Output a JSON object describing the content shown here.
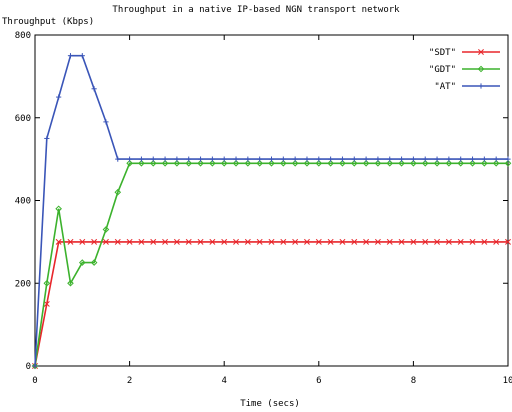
{
  "chart_data": {
    "type": "line",
    "title": "Throughput in a native IP-based NGN transport network",
    "ylabel": "Throughput (Kbps)",
    "xlabel": "Time (secs)",
    "xlim": [
      0,
      10
    ],
    "ylim": [
      0,
      800
    ],
    "x_ticks": [
      0,
      2,
      4,
      6,
      8,
      10
    ],
    "y_ticks": [
      0,
      200,
      400,
      600,
      800
    ],
    "grid": false,
    "legend_position": "top-right",
    "series": [
      {
        "name": "\"SDT\"",
        "color": "#e8262b",
        "marker": "x",
        "x": [
          0,
          0.25,
          0.5,
          0.75,
          1.0,
          1.25,
          1.5,
          1.75,
          2.0,
          2.25,
          2.5,
          2.75,
          3.0,
          3.25,
          3.5,
          3.75,
          4.0,
          4.25,
          4.5,
          4.75,
          5.0,
          5.25,
          5.5,
          5.75,
          6.0,
          6.25,
          6.5,
          6.75,
          7.0,
          7.25,
          7.5,
          7.75,
          8.0,
          8.25,
          8.5,
          8.75,
          9.0,
          9.25,
          9.5,
          9.75,
          10.0
        ],
        "y": [
          0,
          150,
          300,
          300,
          300,
          300,
          300,
          300,
          300,
          300,
          300,
          300,
          300,
          300,
          300,
          300,
          300,
          300,
          300,
          300,
          300,
          300,
          300,
          300,
          300,
          300,
          300,
          300,
          300,
          300,
          300,
          300,
          300,
          300,
          300,
          300,
          300,
          300,
          300,
          300,
          300
        ]
      },
      {
        "name": "\"GDT\"",
        "color": "#3cb22d",
        "marker": "diamond",
        "x": [
          0,
          0.25,
          0.5,
          0.75,
          1.0,
          1.25,
          1.5,
          1.75,
          2.0,
          2.25,
          2.5,
          2.75,
          3.0,
          3.25,
          3.5,
          3.75,
          4.0,
          4.25,
          4.5,
          4.75,
          5.0,
          5.25,
          5.5,
          5.75,
          6.0,
          6.25,
          6.5,
          6.75,
          7.0,
          7.25,
          7.5,
          7.75,
          8.0,
          8.25,
          8.5,
          8.75,
          9.0,
          9.25,
          9.5,
          9.75,
          10.0
        ],
        "y": [
          0,
          200,
          380,
          200,
          250,
          250,
          330,
          420,
          490,
          490,
          490,
          490,
          490,
          490,
          490,
          490,
          490,
          490,
          490,
          490,
          490,
          490,
          490,
          490,
          490,
          490,
          490,
          490,
          490,
          490,
          490,
          490,
          490,
          490,
          490,
          490,
          490,
          490,
          490,
          490,
          490
        ]
      },
      {
        "name": "\"AT\"",
        "color": "#3a55b8",
        "marker": "plus",
        "x": [
          0,
          0.25,
          0.5,
          0.75,
          1.0,
          1.25,
          1.5,
          1.75,
          2.0,
          2.25,
          2.5,
          2.75,
          3.0,
          3.25,
          3.5,
          3.75,
          4.0,
          4.25,
          4.5,
          4.75,
          5.0,
          5.25,
          5.5,
          5.75,
          6.0,
          6.25,
          6.5,
          6.75,
          7.0,
          7.25,
          7.5,
          7.75,
          8.0,
          8.25,
          8.5,
          8.75,
          9.0,
          9.25,
          9.5,
          9.75,
          10.0
        ],
        "y": [
          0,
          550,
          650,
          750,
          750,
          670,
          590,
          500,
          500,
          500,
          500,
          500,
          500,
          500,
          500,
          500,
          500,
          500,
          500,
          500,
          500,
          500,
          500,
          500,
          500,
          500,
          500,
          500,
          500,
          500,
          500,
          500,
          500,
          500,
          500,
          500,
          500,
          500,
          500,
          500,
          500
        ]
      }
    ]
  }
}
